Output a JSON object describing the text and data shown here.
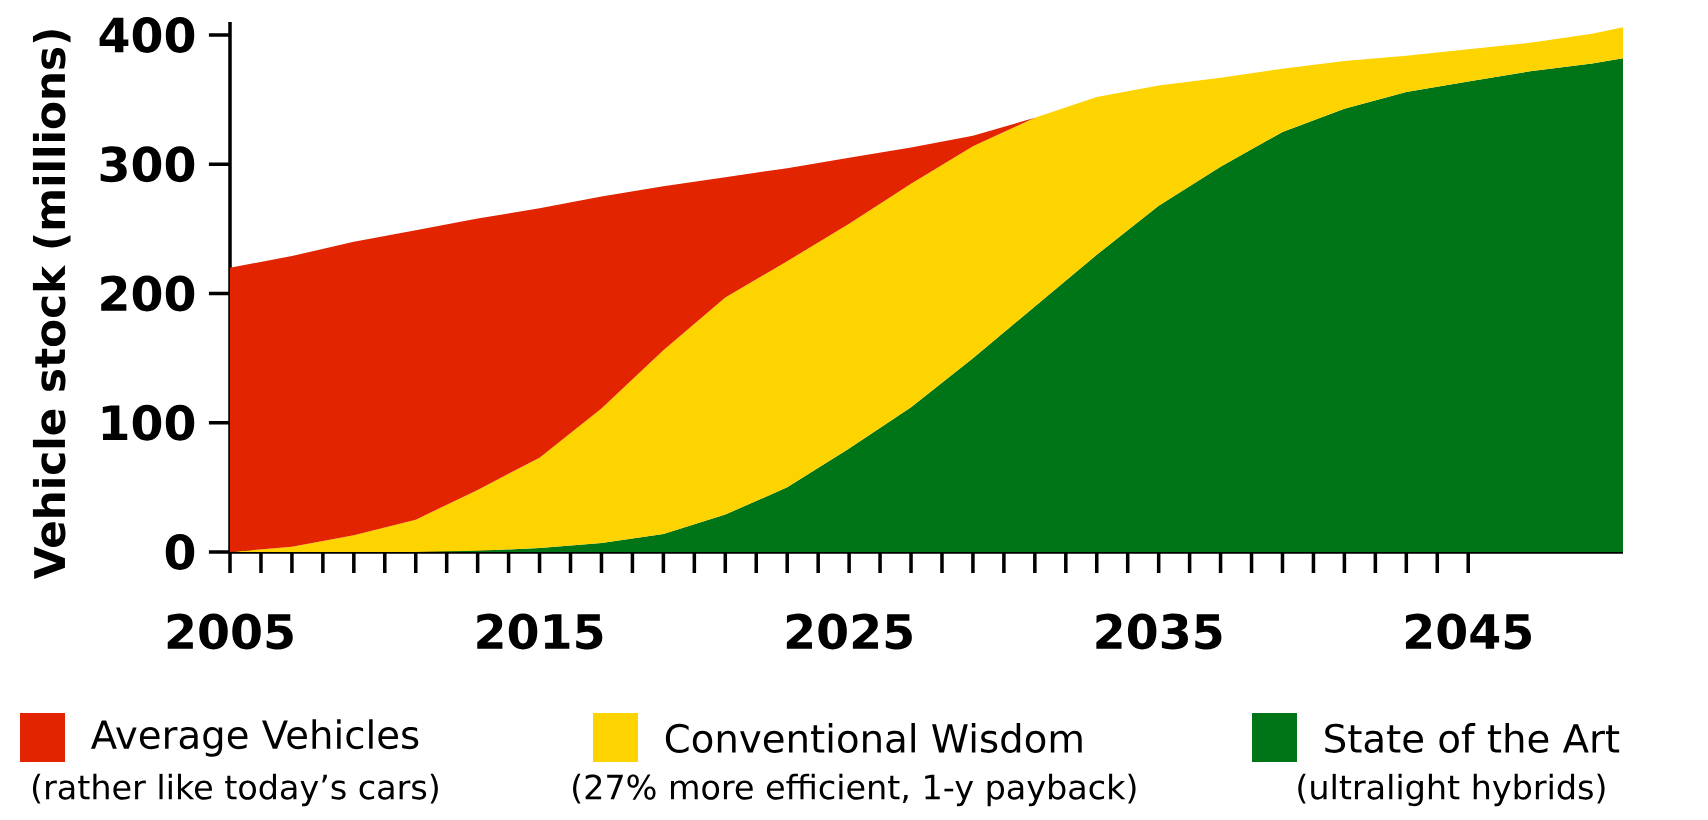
{
  "chart_data": {
    "type": "area",
    "stacked": true,
    "ylabel": "Vehicle stock (millions)",
    "x": [
      2005,
      2007,
      2009,
      2011,
      2013,
      2015,
      2017,
      2019,
      2021,
      2023,
      2025,
      2027,
      2029,
      2031,
      2033,
      2035,
      2037,
      2039,
      2041,
      2043,
      2045,
      2047,
      2049,
      2050
    ],
    "series": [
      {
        "name": "State of the Art",
        "color": "#007518",
        "values": [
          0,
          0,
          0,
          0,
          1,
          3,
          7,
          14,
          29,
          50,
          80,
          112,
          150,
          190,
          230,
          268,
          298,
          325,
          343,
          356,
          364,
          372,
          378,
          382
        ]
      },
      {
        "name": "Conventional Wisdom",
        "color": "#fdd400",
        "values": [
          0,
          4,
          13,
          25,
          47,
          70,
          104,
          142,
          168,
          175,
          174,
          173,
          164,
          146,
          122,
          93,
          69,
          49,
          37,
          28,
          25,
          22,
          23,
          24
        ]
      },
      {
        "name": "Average Vehicles",
        "color": "#e32400",
        "x": [
          2005,
          2007,
          2009,
          2011,
          2013,
          2015,
          2017,
          2019,
          2021,
          2023,
          2025,
          2027,
          2029,
          2031
        ],
        "values": [
          220,
          225,
          227,
          224,
          210,
          193,
          164,
          127,
          93,
          72,
          51,
          28,
          8,
          0
        ]
      }
    ],
    "xlim": [
      2005,
      2050
    ],
    "xticks": [
      2005,
      2015,
      2025,
      2035,
      2045
    ],
    "ylim": [
      0,
      410
    ],
    "yticks": [
      0,
      100,
      200,
      300,
      400
    ],
    "legend": "bottom",
    "annotations": [
      "(ultralight hybrids)",
      "(27% more efficient, 1-y payback)",
      "(rather like today’s cars)"
    ]
  }
}
